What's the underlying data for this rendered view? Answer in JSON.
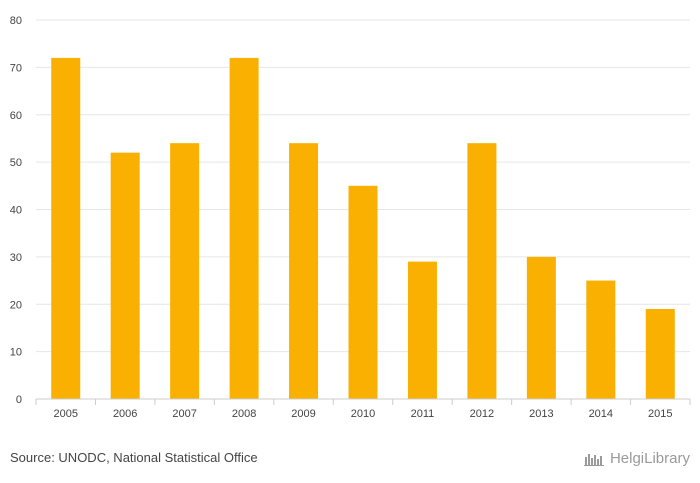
{
  "chart_data": {
    "type": "bar",
    "categories": [
      "2005",
      "2006",
      "2007",
      "2008",
      "2009",
      "2010",
      "2011",
      "2012",
      "2013",
      "2014",
      "2015"
    ],
    "values": [
      72,
      52,
      54,
      72,
      54,
      45,
      29,
      54,
      30,
      25,
      19
    ],
    "ylim": [
      0,
      80
    ],
    "yticks": [
      0,
      10,
      20,
      30,
      40,
      50,
      60,
      70,
      80
    ],
    "bar_color": "#F9B000",
    "grid": true,
    "title": "",
    "xlabel": "",
    "ylabel": ""
  },
  "footer": {
    "source": "Source: UNODC, National Statistical Office",
    "brand": "HelgiLibrary"
  },
  "colors": {
    "grid": "#e6e6e6",
    "axis": "#cccccc",
    "text": "#444444",
    "brand": "#9a9a9a"
  }
}
